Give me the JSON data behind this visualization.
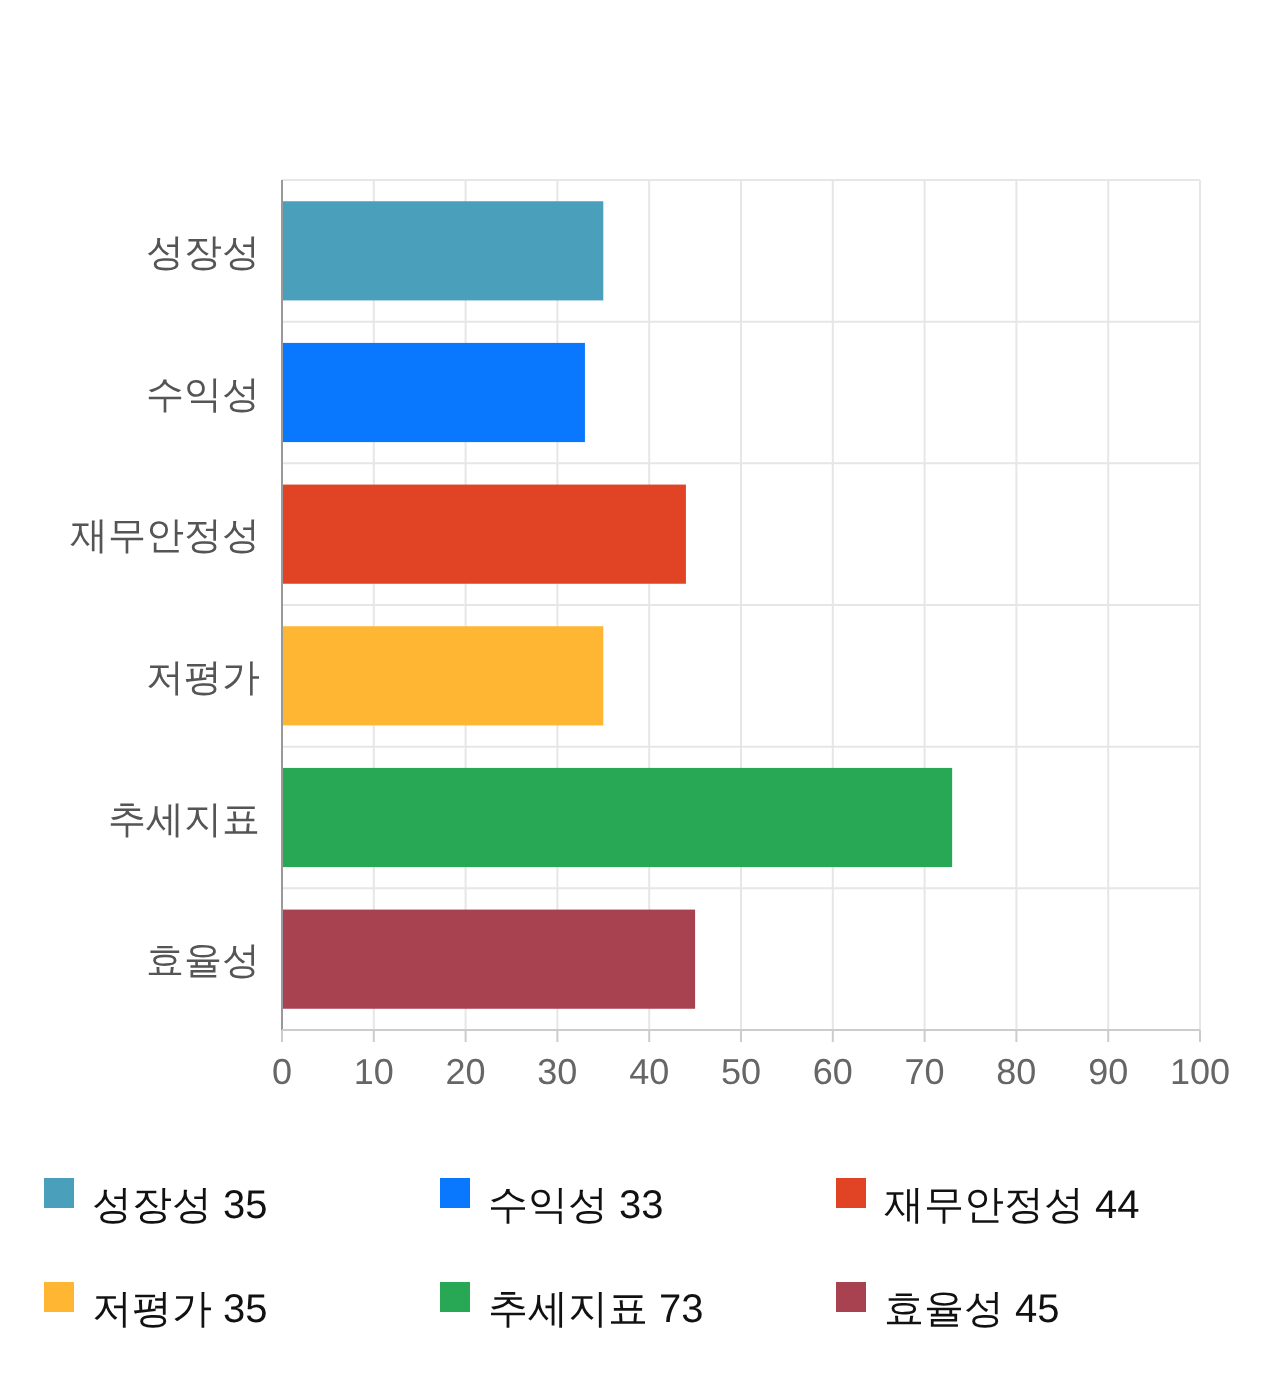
{
  "chart_data": {
    "type": "bar",
    "orientation": "horizontal",
    "stacked": true,
    "categories": [
      "성장성",
      "수익성",
      "재무안정성",
      "저평가",
      "추세지표",
      "효율성"
    ],
    "series": [
      {
        "name": "성장성 35",
        "color": "#4aa0ba",
        "values": [
          35,
          null,
          null,
          null,
          null,
          null
        ]
      },
      {
        "name": "수익성 33",
        "color": "#0a77ff",
        "values": [
          null,
          33,
          null,
          null,
          null,
          null
        ]
      },
      {
        "name": "재무안정성 44",
        "color": "#e04424",
        "values": [
          null,
          null,
          44,
          null,
          null,
          null
        ]
      },
      {
        "name": "저평가 35",
        "color": "#ffb733",
        "values": [
          null,
          null,
          null,
          35,
          null,
          null
        ]
      },
      {
        "name": "추세지표 73",
        "color": "#28a755",
        "values": [
          null,
          null,
          null,
          null,
          73,
          null
        ]
      },
      {
        "name": "효율성 45",
        "color": "#a84250",
        "values": [
          null,
          null,
          null,
          null,
          null,
          45
        ]
      }
    ],
    "xlim": [
      0,
      100
    ],
    "xticks": [
      0,
      10,
      20,
      30,
      40,
      50,
      60,
      70,
      80,
      90,
      100
    ],
    "grid": true,
    "legend": "bottom"
  }
}
